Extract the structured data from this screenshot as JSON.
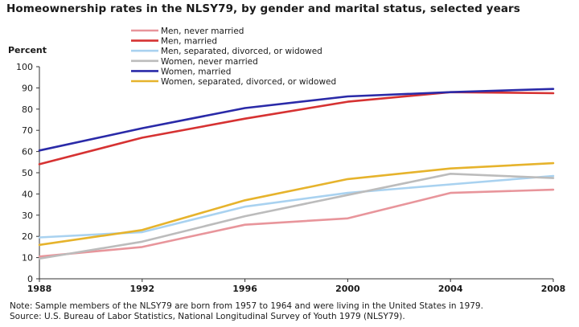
{
  "chart_data": {
    "type": "line",
    "title": "Homeownership rates in the NLSY79, by gender and marital status, selected years",
    "xlabel": "",
    "ylabel": "Percent",
    "x": [
      1988,
      1992,
      1996,
      2000,
      2004,
      2008
    ],
    "ylim": [
      0,
      100
    ],
    "yticks": [
      0,
      10,
      20,
      30,
      40,
      50,
      60,
      70,
      80,
      90,
      100
    ],
    "grid": false,
    "legend_position": "top-center",
    "series": [
      {
        "name": "Men, never married",
        "color": "#e8959b",
        "values": [
          10.5,
          15,
          25.5,
          28.5,
          40.5,
          42
        ]
      },
      {
        "name": "Men, married",
        "color": "#d63232",
        "values": [
          54,
          66.5,
          75.5,
          83.5,
          88,
          87.5
        ]
      },
      {
        "name": "Men, separated, divorced, or widowed",
        "color": "#a9d2f0",
        "values": [
          19.5,
          22,
          34,
          40.5,
          44.5,
          48.5
        ]
      },
      {
        "name": "Women, never married",
        "color": "#bcbcbc",
        "values": [
          9.5,
          17.5,
          29.5,
          39.5,
          49.5,
          47.5
        ]
      },
      {
        "name": "Women, married",
        "color": "#2a2aa8",
        "values": [
          60.5,
          71,
          80.5,
          86,
          88,
          89.5
        ]
      },
      {
        "name": "Women, separated, divorced, or widowed",
        "color": "#e6b32c",
        "values": [
          16,
          23,
          37,
          47,
          52,
          54.5
        ]
      }
    ]
  },
  "footnotes": {
    "note": "Note: Sample members of the NLSY79 are born from 1957 to 1964 and were living in the United States in 1979.",
    "source": "Source: U.S. Bureau of Labor Statistics, National Longitudinal Survey of Youth 1979 (NLSY79)."
  }
}
